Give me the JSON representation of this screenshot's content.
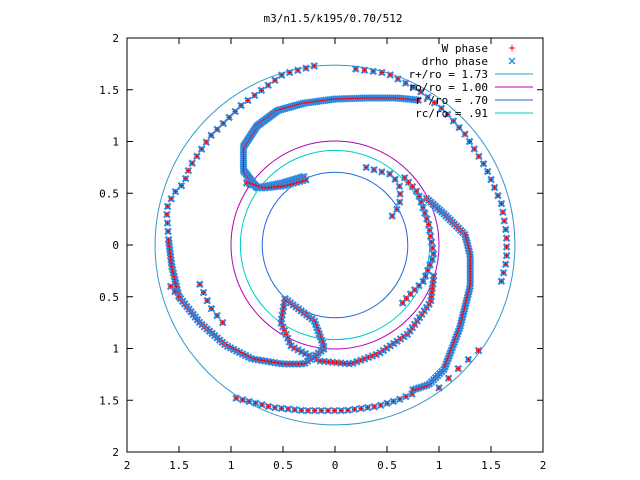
{
  "chart_data": {
    "type": "scatter",
    "title": "m3/n1.5/k195/0.70/512",
    "xlim": [
      -2,
      2
    ],
    "ylim": [
      -2,
      2
    ],
    "x_ticks": [
      -2,
      -1.5,
      -1,
      -0.5,
      0,
      0.5,
      1,
      1.5,
      2
    ],
    "y_ticks": [
      -2,
      -1.5,
      -1,
      -0.5,
      0,
      0.5,
      1,
      1.5,
      2
    ],
    "x_tick_labels": [
      "2",
      "1.5",
      "1",
      "0.5",
      "0",
      "0.5",
      "1",
      "1.5",
      "2"
    ],
    "y_tick_labels": [
      "2",
      "1.5",
      "1",
      "0.5",
      "0",
      "0.5",
      "1",
      "1.5",
      "2"
    ],
    "grid": false,
    "legend_position": "top-right",
    "legend": [
      {
        "label": "W phase",
        "marker": "plus",
        "color": "#ff0000"
      },
      {
        "label": "drho phase",
        "marker": "cross",
        "color": "#2a8ce6"
      },
      {
        "label": "r+/ro = 1.73",
        "marker": "line",
        "color": "#3399cc"
      },
      {
        "label": "ro/ro = 1.00",
        "marker": "line",
        "color": "#b400b4"
      },
      {
        "label": "r-/ro = .70",
        "marker": "line",
        "color": "#2266dd"
      },
      {
        "label": "rc/ro = .91",
        "marker": "line",
        "color": "#00c8c8"
      }
    ],
    "circles": [
      {
        "label": "r+/ro = 1.73",
        "r": 1.73,
        "color": "#3399cc"
      },
      {
        "label": "ro/ro = 1.00",
        "r": 1.0,
        "color": "#b400b4"
      },
      {
        "label": "r-/ro = .70",
        "r": 0.7,
        "color": "#2266dd"
      },
      {
        "label": "rc/ro = .91",
        "r": 0.91,
        "color": "#00c8c8"
      }
    ],
    "series": [
      {
        "name": "W phase",
        "arms": [
          {
            "polyline": [
              [
                -0.3,
                0.66
              ],
              [
                -0.5,
                0.6
              ],
              [
                -0.75,
                0.55
              ],
              [
                -0.88,
                0.72
              ],
              [
                -0.88,
                0.95
              ],
              [
                -0.75,
                1.15
              ],
              [
                -0.55,
                1.3
              ],
              [
                -0.3,
                1.37
              ],
              [
                0.0,
                1.41
              ],
              [
                0.3,
                1.42
              ],
              [
                0.6,
                1.42
              ],
              [
                0.8,
                1.4
              ]
            ],
            "n": 140
          },
          {
            "polyline": [
              [
                -0.28,
                0.63
              ],
              [
                -0.5,
                0.57
              ],
              [
                -0.7,
                0.55
              ],
              [
                -0.85,
                0.6
              ]
            ],
            "n": 20
          },
          {
            "polyline": [
              [
                0.3,
                0.75
              ],
              [
                0.4,
                0.72
              ],
              [
                0.55,
                0.68
              ],
              [
                0.63,
                0.55
              ],
              [
                0.62,
                0.38
              ],
              [
                0.55,
                0.28
              ]
            ],
            "n": 10
          },
          {
            "polyline": [
              [
                0.67,
                0.65
              ],
              [
                0.8,
                0.5
              ],
              [
                0.9,
                0.2
              ],
              [
                0.95,
                -0.1
              ],
              [
                0.85,
                -0.35
              ],
              [
                0.7,
                -0.5
              ],
              [
                0.65,
                -0.56
              ]
            ],
            "n": 25
          },
          {
            "polyline": [
              [
                -0.48,
                -0.52
              ],
              [
                -0.52,
                -0.75
              ],
              [
                -0.42,
                -0.98
              ],
              [
                -0.15,
                -1.12
              ],
              [
                0.15,
                -1.15
              ],
              [
                0.42,
                -1.05
              ],
              [
                0.7,
                -0.86
              ],
              [
                0.92,
                -0.55
              ],
              [
                0.95,
                -0.3
              ]
            ],
            "n": 60
          },
          {
            "polyline": [
              [
                -0.48,
                -0.52
              ],
              [
                -0.2,
                -0.73
              ],
              [
                -0.1,
                -1.0
              ],
              [
                -0.3,
                -1.15
              ],
              [
                -0.5,
                -1.15
              ],
              [
                -0.8,
                -1.1
              ],
              [
                -1.05,
                -0.97
              ],
              [
                -1.3,
                -0.75
              ],
              [
                -1.5,
                -0.5
              ],
              [
                -1.57,
                -0.2
              ],
              [
                -1.6,
                0.05
              ]
            ],
            "n": 90
          },
          {
            "polyline": [
              [
                0.88,
                0.45
              ],
              [
                1.05,
                0.3
              ],
              [
                1.25,
                0.1
              ],
              [
                1.3,
                -0.1
              ],
              [
                1.3,
                -0.4
              ],
              [
                1.2,
                -0.8
              ],
              [
                1.05,
                -1.2
              ],
              [
                0.9,
                -1.35
              ],
              [
                0.75,
                -1.4
              ]
            ],
            "n": 80
          },
          {
            "polyline": [
              [
                0.74,
                -1.44
              ],
              [
                0.6,
                -1.5
              ],
              [
                0.4,
                -1.56
              ],
              [
                0.1,
                -1.6
              ],
              [
                -0.3,
                -1.6
              ],
              [
                -0.6,
                -1.57
              ],
              [
                -0.95,
                -1.48
              ]
            ],
            "n": 28
          },
          {
            "polyline": [
              [
                -1.3,
                -0.38
              ],
              [
                -1.2,
                -0.6
              ],
              [
                -1.08,
                -0.75
              ]
            ],
            "n": 6
          },
          {
            "polyline": [
              [
                -1.58,
                -0.4
              ],
              [
                -1.5,
                -0.5
              ]
            ],
            "n": 3
          },
          {
            "polyline": [
              [
                -1.6,
                0.05
              ],
              [
                -1.62,
                0.35
              ],
              [
                -1.55,
                0.5
              ],
              [
                -1.45,
                0.6
              ],
              [
                -1.4,
                0.75
              ],
              [
                -1.3,
                0.9
              ],
              [
                -1.2,
                1.05
              ],
              [
                -1.05,
                1.2
              ],
              [
                -0.9,
                1.35
              ],
              [
                -0.7,
                1.5
              ],
              [
                -0.5,
                1.65
              ],
              [
                -0.2,
                1.73
              ]
            ],
            "n": 30
          },
          {
            "polyline": [
              [
                0.2,
                1.7
              ],
              [
                0.5,
                1.66
              ],
              [
                0.8,
                1.5
              ],
              [
                1.05,
                1.3
              ],
              [
                1.25,
                1.07
              ],
              [
                1.45,
                0.75
              ],
              [
                1.6,
                0.4
              ],
              [
                1.65,
                0.1
              ],
              [
                1.65,
                -0.15
              ],
              [
                1.6,
                -0.35
              ]
            ],
            "n": 34
          },
          {
            "polyline": [
              [
                1.38,
                -1.02
              ],
              [
                1.2,
                -1.18
              ],
              [
                1.0,
                -1.38
              ]
            ],
            "n": 5
          }
        ]
      },
      {
        "name": "drho phase",
        "arms": "same points as W phase"
      }
    ]
  }
}
